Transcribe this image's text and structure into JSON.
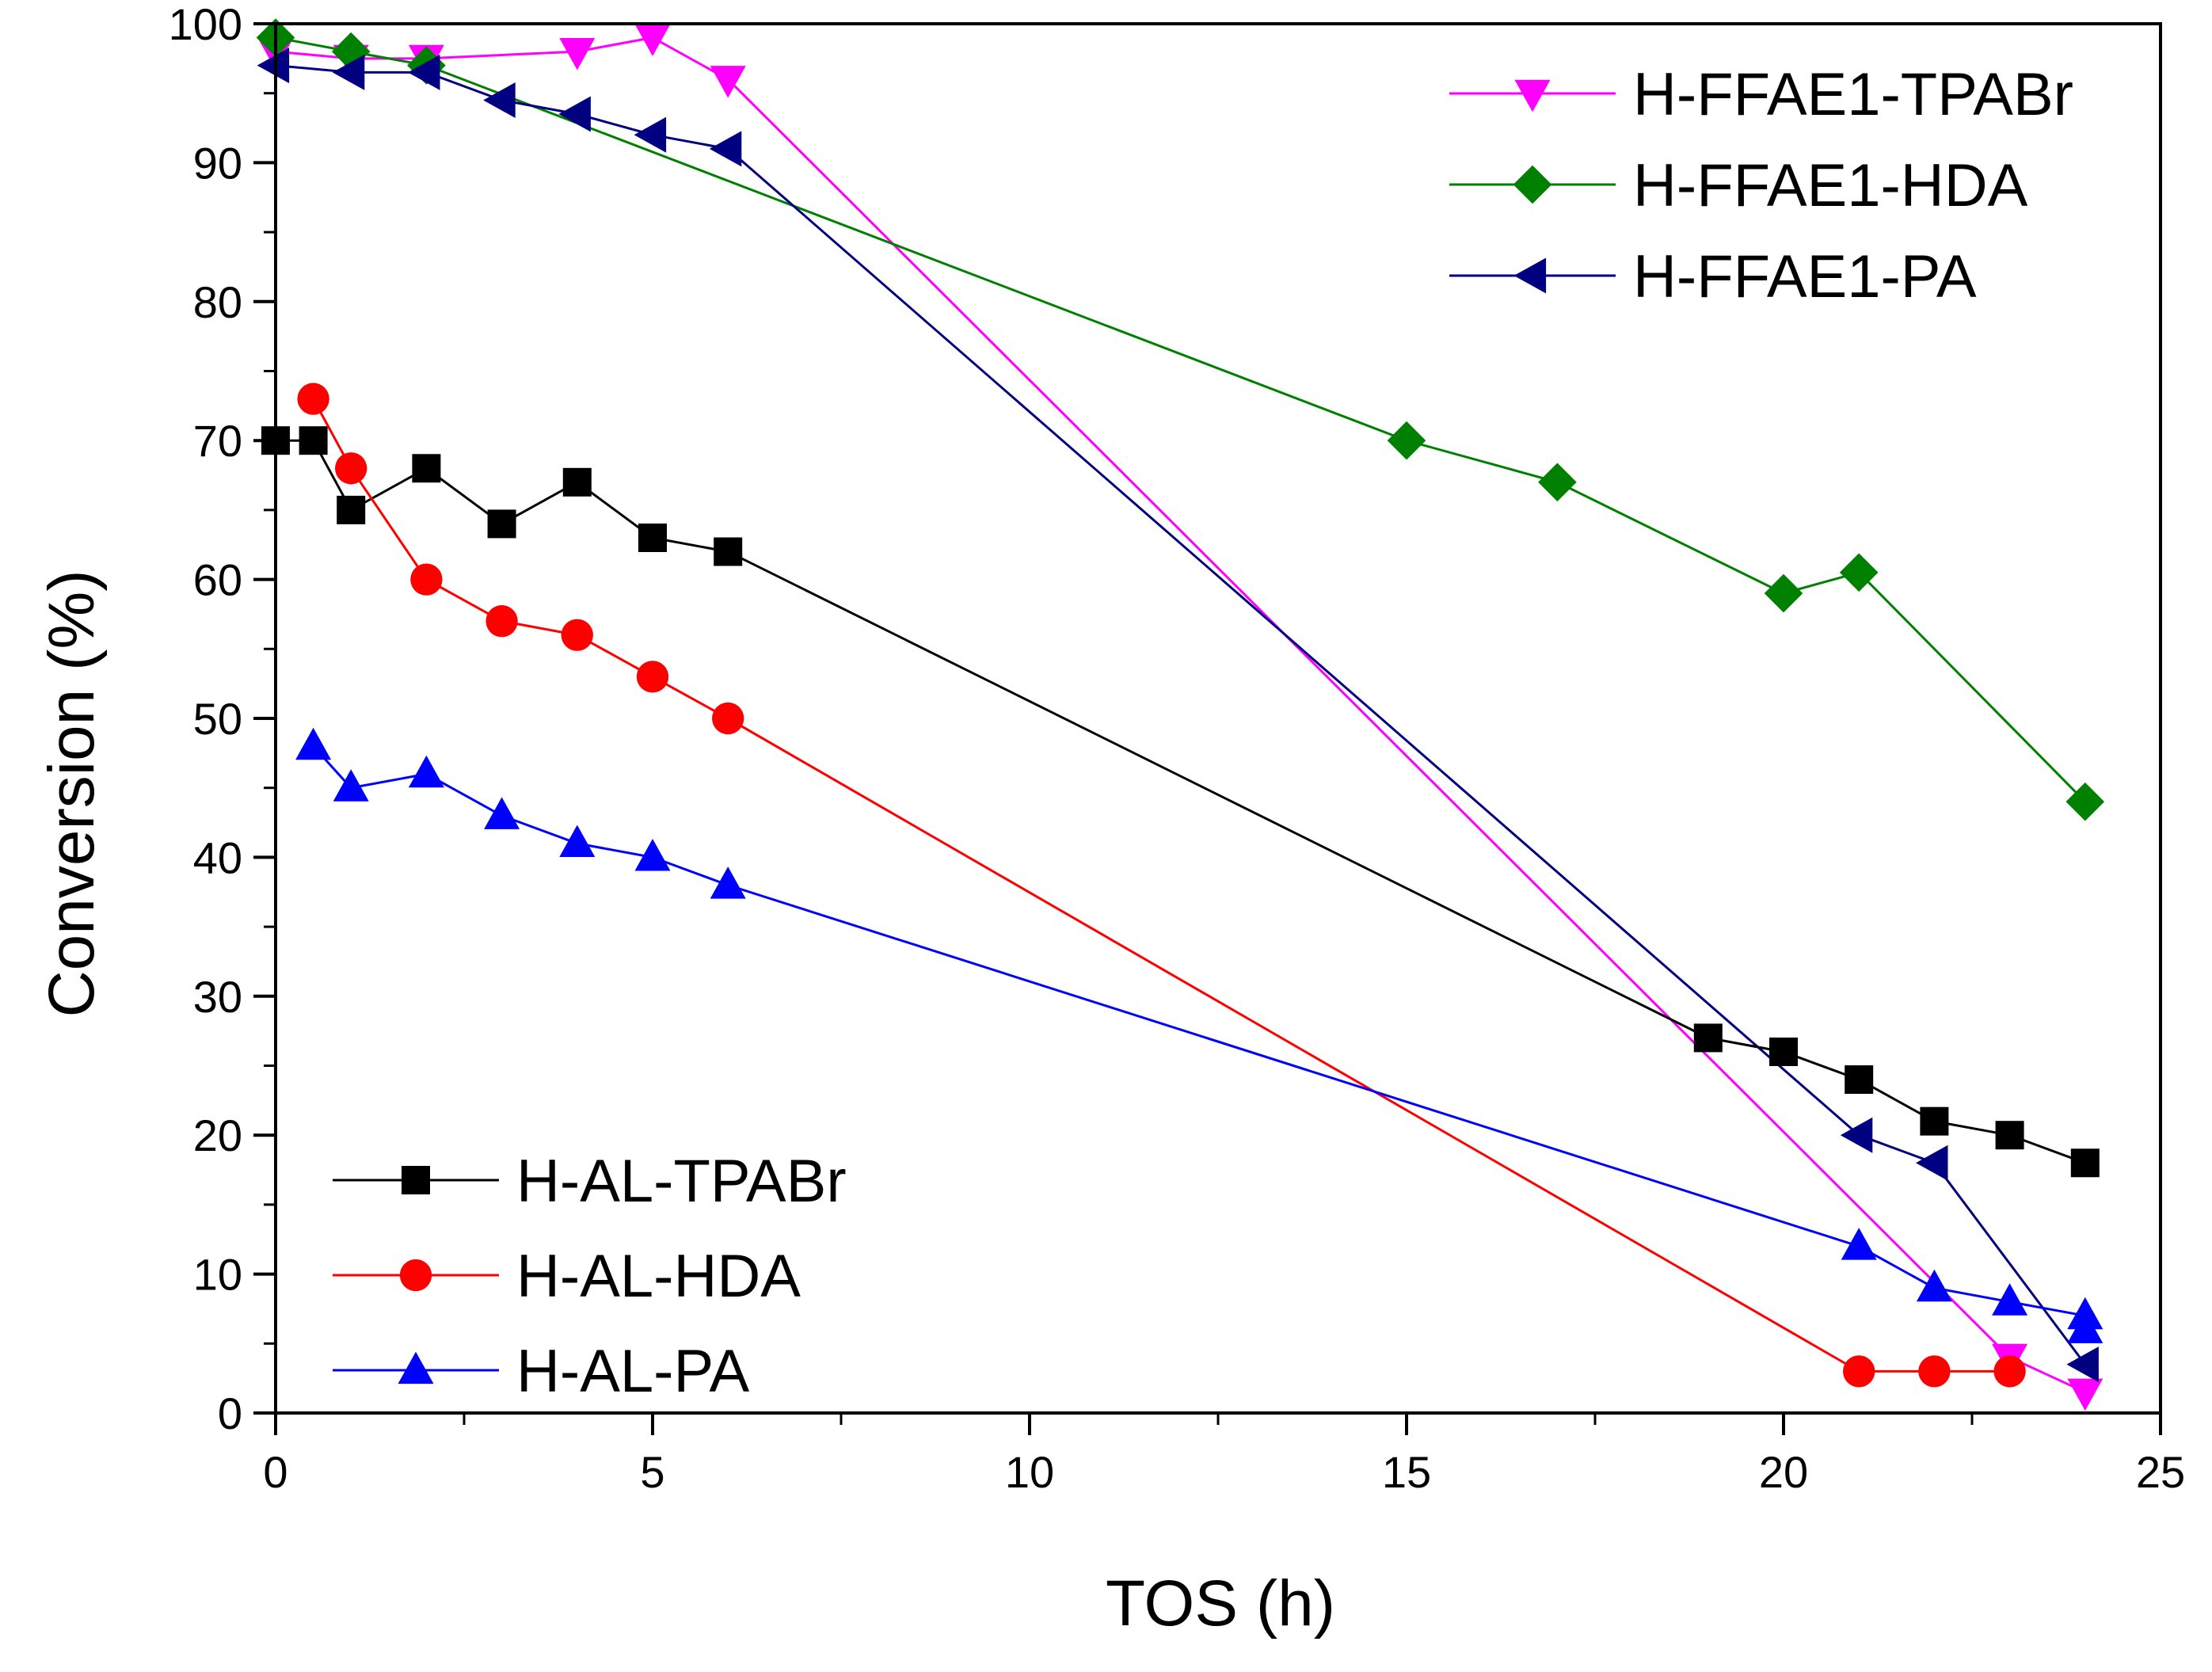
{
  "chart_data": {
    "type": "line",
    "title": "",
    "xlabel": "TOS (h)",
    "ylabel": "Conversion (%)",
    "xlim": [
      0,
      25
    ],
    "ylim": [
      0,
      100
    ],
    "xticks": [
      0,
      5,
      10,
      15,
      20,
      25
    ],
    "yticks": [
      0,
      10,
      20,
      30,
      40,
      50,
      60,
      70,
      80,
      90,
      100
    ],
    "x_tick_labels": [
      "0",
      "5",
      "10",
      "15",
      "20",
      "25"
    ],
    "y_tick_labels": [
      "0",
      "10",
      "20",
      "30",
      "40",
      "50",
      "60",
      "70",
      "80",
      "90",
      "100"
    ],
    "grid": false,
    "legends": [
      {
        "placement": "top-right",
        "series": [
          "H-FFAE1-TPABr",
          "H-FFAE1-HDA",
          "H-FFAE1-PA"
        ]
      },
      {
        "placement": "bottom-left",
        "series": [
          "H-AL-TPABr",
          "H-AL-HDA",
          "H-AL-PA"
        ]
      }
    ],
    "series": [
      {
        "name": "H-FFAE1-TPABr",
        "color": "#ff00ff",
        "marker": "triangle-down",
        "x": [
          0,
          1,
          2,
          4,
          5,
          6,
          23,
          24
        ],
        "y": [
          98,
          97.5,
          97.5,
          98,
          99,
          96,
          4,
          1.5
        ]
      },
      {
        "name": "H-FFAE1-HDA",
        "color": "#008000",
        "marker": "diamond",
        "x": [
          0,
          1,
          2,
          15,
          17,
          20,
          21,
          24
        ],
        "y": [
          99,
          98,
          97,
          70,
          67,
          59,
          60.5,
          44
        ]
      },
      {
        "name": "H-FFAE1-PA",
        "color": "#000080",
        "marker": "triangle-left",
        "x": [
          0,
          1,
          2,
          3,
          4,
          5,
          6,
          21,
          22,
          24
        ],
        "y": [
          97,
          96.5,
          96.5,
          94.5,
          93.5,
          92,
          91,
          20,
          18,
          3.5
        ]
      },
      {
        "name": "H-AL-TPABr",
        "color": "#000000",
        "marker": "square",
        "x": [
          0,
          0.5,
          1,
          2,
          3,
          4,
          5,
          6,
          19,
          20,
          21,
          22,
          23,
          24
        ],
        "y": [
          70,
          70,
          65,
          68,
          64,
          67,
          63,
          62,
          27,
          26,
          24,
          21,
          20,
          18
        ]
      },
      {
        "name": "H-AL-HDA",
        "color": "#ff0000",
        "marker": "circle",
        "x": [
          0.5,
          1,
          2,
          3,
          4,
          5,
          6,
          21,
          22,
          23
        ],
        "y": [
          73,
          68,
          60,
          57,
          56,
          53,
          50,
          3,
          3,
          3
        ]
      },
      {
        "name": "H-AL-PA",
        "color": "#0000ff",
        "marker": "triangle-up",
        "x": [
          0.5,
          1,
          2,
          3,
          4,
          5,
          6,
          21,
          22,
          23,
          24,
          24
        ],
        "y": [
          48,
          45,
          46,
          43,
          41,
          40,
          38,
          12,
          9,
          8,
          7,
          6
        ]
      }
    ]
  }
}
